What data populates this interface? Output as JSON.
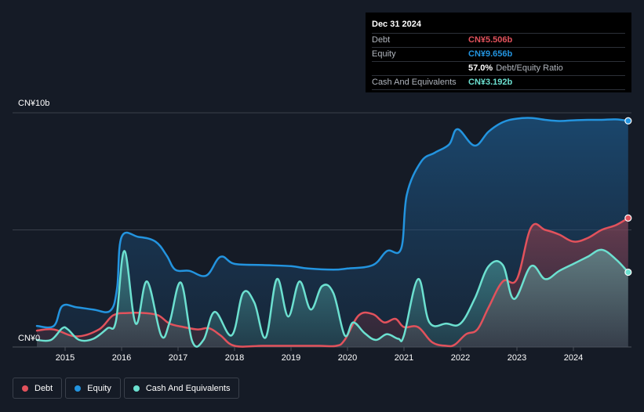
{
  "tooltip": {
    "date": "Dec 31 2024",
    "debt_label": "Debt",
    "debt_value": "CN¥5.506b",
    "equity_label": "Equity",
    "equity_value": "CN¥9.656b",
    "ratio_value": "57.0%",
    "ratio_label": "Debt/Equity Ratio",
    "cash_label": "Cash And Equivalents",
    "cash_value": "CN¥3.192b"
  },
  "legend": {
    "debt_label": "Debt",
    "equity_label": "Equity",
    "cash_label": "Cash And Equivalents"
  },
  "colors": {
    "background": "#151b26",
    "debt": "#e2525c",
    "equity": "#2394df",
    "cash": "#6ce0d0",
    "grid": "#3a404b"
  },
  "chart_data": {
    "type": "area",
    "title": "",
    "xlabel": "",
    "ylabel": "",
    "y_top_label": "CN¥10b",
    "y_bottom_label": "CN¥0",
    "ylim": [
      0,
      10
    ],
    "xlim": [
      2014.5,
      2025.0
    ],
    "x_ticks": [
      2015,
      2016,
      2017,
      2018,
      2019,
      2020,
      2021,
      2022,
      2023,
      2024
    ],
    "grid": true,
    "legend_position": "bottom-left",
    "series": [
      {
        "name": "Equity",
        "x": [
          2014.5,
          2014.8,
          2014.95,
          2015.2,
          2015.5,
          2015.8,
          2015.92,
          2016.0,
          2016.3,
          2016.6,
          2016.8,
          2016.95,
          2017.2,
          2017.5,
          2017.75,
          2018.0,
          2018.5,
          2019.0,
          2019.3,
          2019.75,
          2020.0,
          2020.45,
          2020.7,
          2020.95,
          2021.05,
          2021.3,
          2021.55,
          2021.8,
          2021.95,
          2022.25,
          2022.5,
          2022.75,
          2023.0,
          2023.25,
          2023.5,
          2023.75,
          2024.0,
          2024.25,
          2024.5,
          2024.75,
          2024.97
        ],
        "y": [
          0.9,
          0.9,
          1.75,
          1.7,
          1.6,
          1.55,
          2.5,
          4.7,
          4.7,
          4.5,
          3.9,
          3.3,
          3.25,
          3.05,
          3.85,
          3.55,
          3.5,
          3.45,
          3.35,
          3.3,
          3.35,
          3.5,
          4.1,
          4.2,
          6.5,
          7.9,
          8.3,
          8.65,
          9.3,
          8.6,
          9.2,
          9.6,
          9.75,
          9.78,
          9.7,
          9.65,
          9.68,
          9.7,
          9.7,
          9.72,
          9.656
        ]
      },
      {
        "name": "Debt",
        "x": [
          2014.5,
          2014.8,
          2015.2,
          2015.6,
          2015.85,
          2016.1,
          2016.4,
          2016.65,
          2016.85,
          2017.1,
          2017.35,
          2017.55,
          2017.75,
          2018.0,
          2018.5,
          2019.0,
          2019.5,
          2019.8,
          2019.95,
          2020.2,
          2020.45,
          2020.65,
          2020.85,
          2021.0,
          2021.25,
          2021.5,
          2021.75,
          2021.9,
          2022.1,
          2022.3,
          2022.5,
          2022.75,
          2023.0,
          2023.25,
          2023.5,
          2023.75,
          2024.0,
          2024.25,
          2024.5,
          2024.75,
          2024.97
        ],
        "y": [
          0.7,
          0.75,
          0.45,
          0.75,
          1.35,
          1.45,
          1.45,
          1.35,
          1.0,
          0.85,
          0.75,
          0.8,
          0.5,
          0.05,
          0.05,
          0.05,
          0.05,
          0.05,
          0.3,
          1.35,
          1.4,
          1.05,
          1.2,
          0.85,
          0.85,
          0.2,
          0.05,
          0.1,
          0.55,
          0.75,
          1.7,
          2.8,
          2.9,
          5.1,
          5.0,
          4.8,
          4.5,
          4.65,
          5.0,
          5.2,
          5.506
        ]
      },
      {
        "name": "Cash And Equivalents",
        "x": [
          2014.5,
          2014.75,
          2014.95,
          2015.05,
          2015.25,
          2015.5,
          2015.75,
          2015.9,
          2016.05,
          2016.25,
          2016.45,
          2016.7,
          2016.85,
          2017.05,
          2017.25,
          2017.45,
          2017.65,
          2017.95,
          2018.15,
          2018.35,
          2018.55,
          2018.75,
          2018.95,
          2019.15,
          2019.35,
          2019.55,
          2019.75,
          2019.95,
          2020.1,
          2020.3,
          2020.5,
          2020.7,
          2020.9,
          2021.0,
          2021.25,
          2021.45,
          2021.75,
          2022.0,
          2022.25,
          2022.5,
          2022.75,
          2022.95,
          2023.25,
          2023.5,
          2023.75,
          2024.0,
          2024.25,
          2024.5,
          2024.75,
          2024.97
        ],
        "y": [
          0.3,
          0.3,
          0.8,
          0.75,
          0.3,
          0.35,
          0.8,
          1.1,
          4.1,
          1.0,
          2.8,
          0.5,
          1.05,
          2.75,
          0.25,
          0.3,
          1.5,
          0.5,
          2.3,
          1.9,
          0.4,
          2.9,
          1.3,
          2.8,
          1.6,
          2.6,
          2.3,
          0.5,
          1.05,
          0.6,
          0.3,
          0.55,
          0.35,
          0.5,
          2.9,
          1.05,
          1.0,
          1.0,
          2.05,
          3.45,
          3.5,
          2.05,
          3.45,
          2.9,
          3.25,
          3.55,
          3.85,
          4.15,
          3.75,
          3.192
        ]
      }
    ]
  }
}
